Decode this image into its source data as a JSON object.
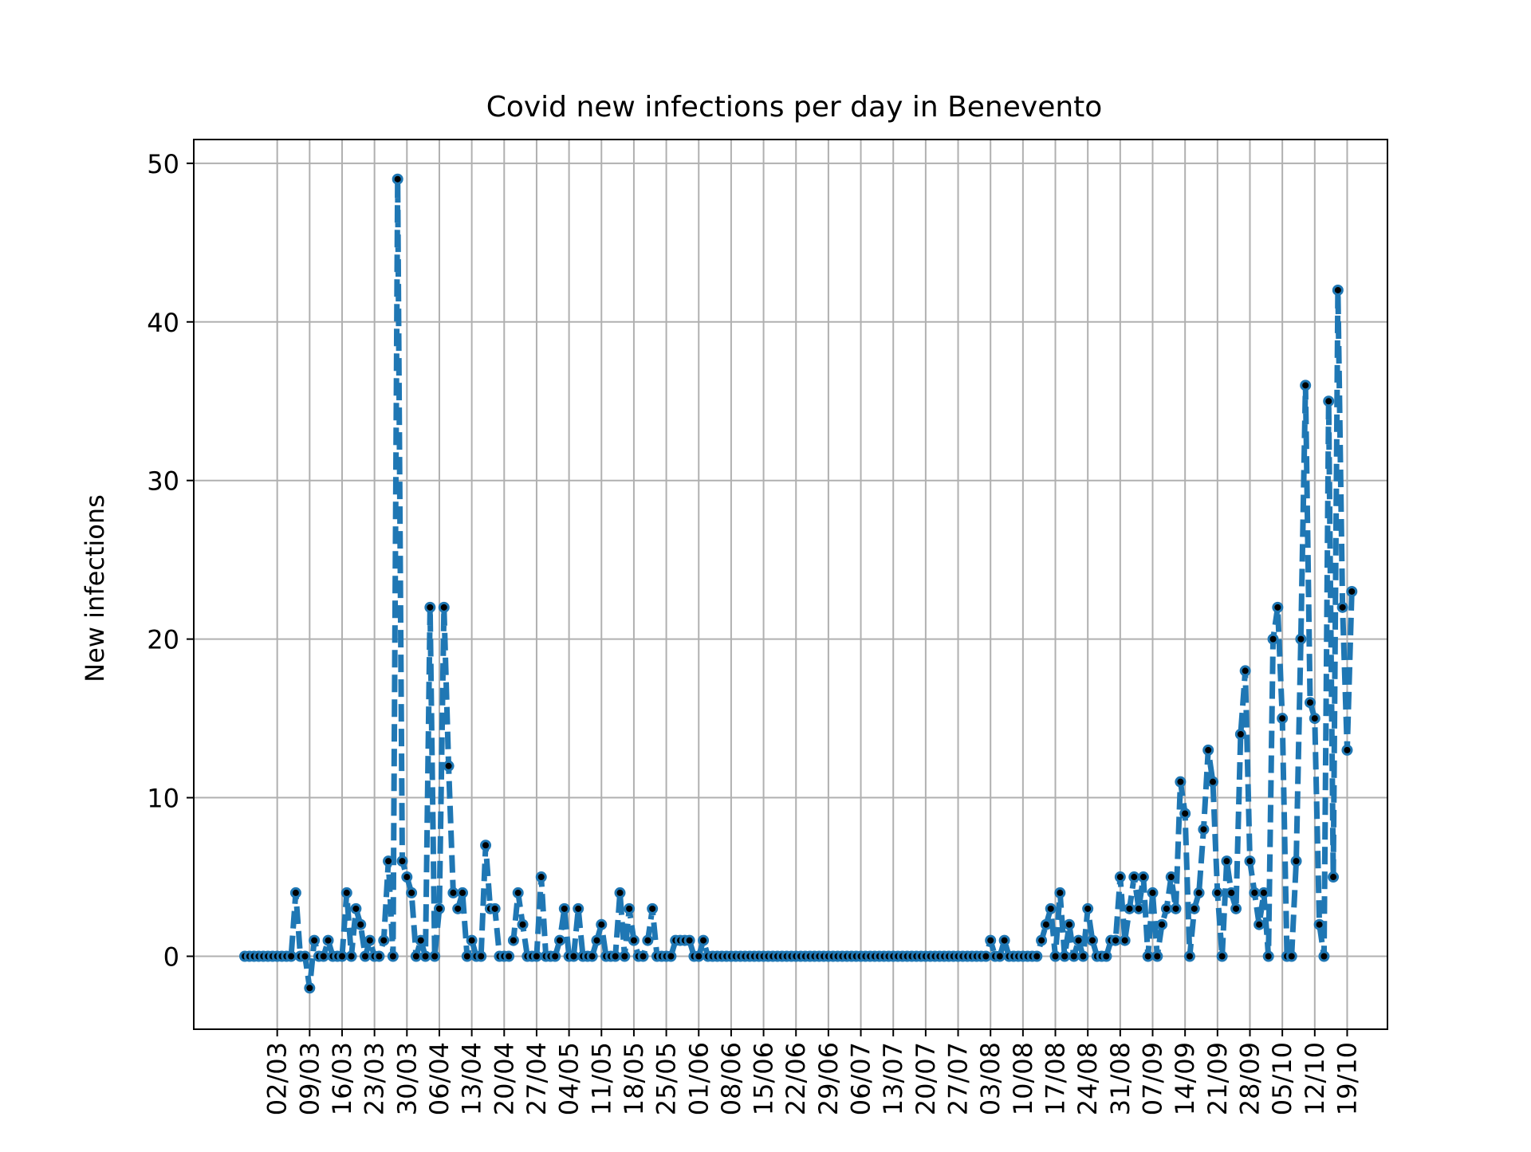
{
  "chart_data": {
    "type": "line",
    "title": "Covid new infections per day in Benevento",
    "xlabel": "",
    "ylabel": "New infections",
    "ylim": [
      -4.6,
      51.5
    ],
    "yticks": [
      0,
      10,
      20,
      30,
      40,
      50
    ],
    "grid": true,
    "x_start_date": "2020-02-24",
    "x_end_date": "2020-10-20",
    "xtick_labels": [
      "02/03",
      "09/03",
      "16/03",
      "23/03",
      "30/03",
      "06/04",
      "13/04",
      "20/04",
      "27/04",
      "04/05",
      "11/05",
      "18/05",
      "25/05",
      "01/06",
      "08/06",
      "15/06",
      "22/06",
      "29/06",
      "06/07",
      "13/07",
      "20/07",
      "27/07",
      "03/08",
      "10/08",
      "17/08",
      "24/08",
      "31/08",
      "07/09",
      "14/09",
      "21/09",
      "28/09",
      "05/10",
      "12/10",
      "19/10"
    ],
    "series": [
      {
        "name": "",
        "color": "#1f77b4",
        "marker_color": "#000000",
        "line_style": "dashed",
        "values": [
          0,
          0,
          0,
          0,
          0,
          0,
          0,
          0,
          0,
          0,
          0,
          4,
          0,
          0,
          -2,
          1,
          0,
          0,
          1,
          0,
          0,
          0,
          4,
          0,
          3,
          2,
          0,
          1,
          0,
          0,
          1,
          6,
          0,
          49,
          6,
          5,
          4,
          0,
          1,
          0,
          22,
          0,
          3,
          22,
          12,
          4,
          3,
          4,
          0,
          1,
          0,
          0,
          7,
          3,
          3,
          0,
          0,
          0,
          1,
          4,
          2,
          0,
          0,
          0,
          5,
          0,
          0,
          0,
          1,
          3,
          0,
          0,
          3,
          0,
          0,
          0,
          1,
          2,
          0,
          0,
          0,
          4,
          0,
          3,
          1,
          0,
          0,
          1,
          3,
          0,
          0,
          0,
          0,
          1,
          1,
          1,
          1,
          0,
          0,
          1,
          0,
          0,
          0,
          0,
          0,
          0,
          0,
          0,
          0,
          0,
          0,
          0,
          0,
          0,
          0,
          0,
          0,
          0,
          0,
          0,
          0,
          0,
          0,
          0,
          0,
          0,
          0,
          0,
          0,
          0,
          0,
          0,
          0,
          0,
          0,
          0,
          0,
          0,
          0,
          0,
          0,
          0,
          0,
          0,
          0,
          0,
          0,
          0,
          0,
          0,
          0,
          0,
          0,
          0,
          0,
          0,
          0,
          0,
          0,
          0,
          0,
          1,
          0,
          0,
          1,
          0,
          0,
          0,
          0,
          0,
          0,
          0,
          1,
          2,
          3,
          0,
          4,
          0,
          2,
          0,
          1,
          0,
          3,
          1,
          0,
          0,
          0,
          1,
          1,
          5,
          1,
          3,
          5,
          3,
          5,
          0,
          4,
          0,
          2,
          3,
          5,
          3,
          11,
          9,
          0,
          3,
          4,
          8,
          13,
          11,
          4,
          0,
          6,
          4,
          3,
          14,
          18,
          6,
          4,
          2,
          4,
          0,
          20,
          22,
          15,
          0,
          0,
          6,
          20,
          36,
          16,
          15,
          2,
          0,
          35,
          5,
          42,
          22,
          13,
          23
        ]
      }
    ]
  }
}
